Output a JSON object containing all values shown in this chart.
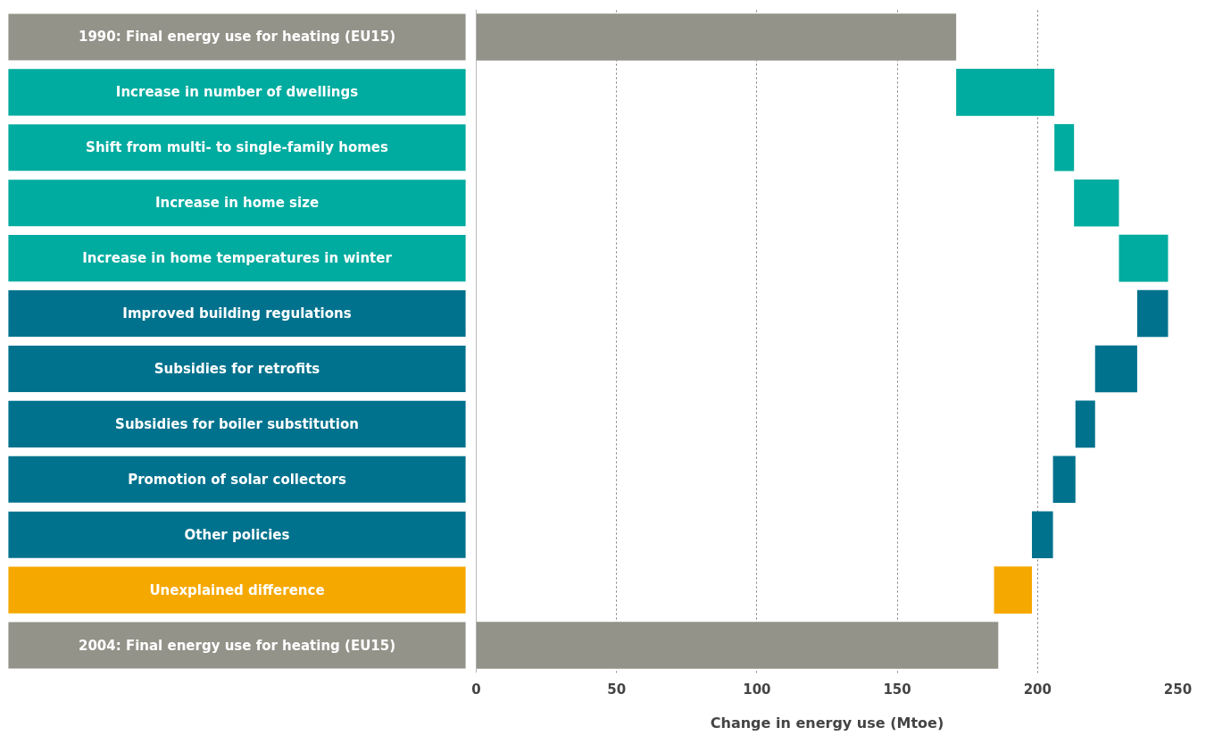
{
  "chart_data": {
    "type": "bar",
    "orientation": "horizontal",
    "xlabel": "Change in energy use (Mtoe)",
    "categories": [
      "1990: Final energy use for heating (EU15)",
      "Increase in number of dwellings",
      "Shift from multi- to single-family homes",
      "Increase in home size",
      "Increase in home temperatures in winter",
      "Improved building regulations",
      "Subsidies for retrofits",
      "Subsidies for boiler substitution",
      "Promotion of solar collectors",
      "Other policies",
      "Unexplained difference",
      "2004: Final energy use for heating (EU15)"
    ],
    "values": [
      171,
      35,
      7,
      16,
      17.5,
      -11,
      -15,
      -7,
      -8,
      -7.5,
      -13.5,
      186
    ],
    "base": [
      0,
      171,
      206,
      213,
      229,
      246.5,
      235.5,
      220.5,
      213.5,
      205.5,
      198,
      0
    ],
    "colors": [
      "#94938a",
      "#00ab9f",
      "#00ab9f",
      "#00ab9f",
      "#00ab9f",
      "#00728d",
      "#00728d",
      "#00728d",
      "#00728d",
      "#00728d",
      "#f5a800",
      "#94938a"
    ],
    "xlim": [
      0,
      250
    ],
    "xticks": [
      0,
      50,
      100,
      150,
      200,
      250
    ],
    "grid": "x"
  }
}
